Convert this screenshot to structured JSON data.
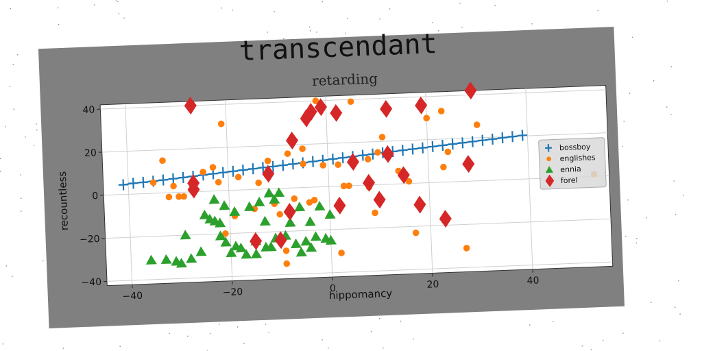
{
  "figure": {
    "background": "#808080",
    "plot_background": "#ffffff"
  },
  "chart_data": {
    "type": "scatter",
    "title": "transcendant",
    "subtitle": "retarding",
    "xlabel": "hippomancy",
    "ylabel": "recountless",
    "xlim": [
      -45,
      56
    ],
    "ylim": [
      -42,
      42
    ],
    "xticks": [
      -40,
      -20,
      0,
      20,
      40
    ],
    "yticks": [
      -40,
      -20,
      0,
      20,
      40
    ],
    "xtick_labels": [
      "−40",
      "−20",
      "0",
      "20",
      "40"
    ],
    "ytick_labels": [
      "−40",
      "−20",
      "0",
      "20",
      "40"
    ],
    "grid": true,
    "legend_position": "right",
    "series": [
      {
        "name": "bossboy",
        "marker": "plus",
        "color": "#1f77b4",
        "points": [
          [
            -41,
            4.5
          ],
          [
            -39,
            5
          ],
          [
            -37,
            5.3
          ],
          [
            -35,
            5.6
          ],
          [
            -33,
            6
          ],
          [
            -31,
            6.4
          ],
          [
            -29,
            6.8
          ],
          [
            -27,
            7.2
          ],
          [
            -25,
            7.6
          ],
          [
            -23,
            8
          ],
          [
            -21,
            8.4
          ],
          [
            -19,
            8.8
          ],
          [
            -17,
            9.2
          ],
          [
            -15,
            9.6
          ],
          [
            -13,
            10
          ],
          [
            -11,
            10.3
          ],
          [
            -9,
            10.7
          ],
          [
            -7,
            11.1
          ],
          [
            -5,
            11.5
          ],
          [
            -3,
            11.9
          ],
          [
            -1,
            12.3
          ],
          [
            1,
            12.7
          ],
          [
            3,
            13.1
          ],
          [
            5,
            13.5
          ],
          [
            7,
            13.9
          ],
          [
            9,
            14.3
          ],
          [
            11,
            14.7
          ],
          [
            13,
            15.1
          ],
          [
            15,
            15.5
          ],
          [
            17,
            15.9
          ],
          [
            19,
            16.3
          ],
          [
            21,
            16.7
          ],
          [
            23,
            17.1
          ],
          [
            25,
            17.5
          ],
          [
            27,
            17.9
          ],
          [
            29,
            18.3
          ],
          [
            31,
            18.7
          ],
          [
            33,
            19.1
          ],
          [
            35,
            19.5
          ],
          [
            37,
            19.9
          ],
          [
            39,
            20.3
          ]
        ]
      },
      {
        "name": "englishes",
        "marker": "circle",
        "color": "#ff7f0e",
        "points": [
          [
            -35,
            5
          ],
          [
            -33,
            15
          ],
          [
            -32,
            -2
          ],
          [
            -31,
            3
          ],
          [
            -30,
            -2
          ],
          [
            -29,
            -2
          ],
          [
            -25,
            9
          ],
          [
            -23,
            11
          ],
          [
            -22,
            4
          ],
          [
            -21,
            31
          ],
          [
            -21,
            -20
          ],
          [
            -19,
            -12
          ],
          [
            -18,
            6
          ],
          [
            -15,
            -9
          ],
          [
            -14,
            3
          ],
          [
            -12,
            13
          ],
          [
            -11,
            -7
          ],
          [
            -10,
            -12
          ],
          [
            -9,
            -35
          ],
          [
            -9,
            -29
          ],
          [
            -8,
            16
          ],
          [
            -7,
            -5
          ],
          [
            -5,
            11
          ],
          [
            -5,
            18
          ],
          [
            -4,
            -7
          ],
          [
            -3,
            -6
          ],
          [
            -2,
            40
          ],
          [
            -1,
            10
          ],
          [
            2,
            10
          ],
          [
            2,
            -31
          ],
          [
            3,
            0
          ],
          [
            4,
            0
          ],
          [
            5,
            39
          ],
          [
            8,
            -1
          ],
          [
            8,
            12
          ],
          [
            9,
            -13
          ],
          [
            10,
            15
          ],
          [
            11,
            22
          ],
          [
            12,
            13
          ],
          [
            14,
            6
          ],
          [
            16,
            1
          ],
          [
            17,
            -23
          ],
          [
            20,
            30
          ],
          [
            23,
            33
          ],
          [
            23,
            7
          ],
          [
            24,
            14
          ],
          [
            27,
            -31
          ],
          [
            30,
            26
          ],
          [
            53,
            1
          ]
        ]
      },
      {
        "name": "ennia",
        "marker": "triangle",
        "color": "#2ca02c",
        "points": [
          [
            -36,
            -31
          ],
          [
            -33,
            -31
          ],
          [
            -31,
            -32
          ],
          [
            -30,
            -33
          ],
          [
            -29,
            -20
          ],
          [
            -28,
            -31
          ],
          [
            -26,
            -28
          ],
          [
            -25,
            -11
          ],
          [
            -24,
            -13
          ],
          [
            -23,
            -4
          ],
          [
            -23,
            -14
          ],
          [
            -22,
            -21
          ],
          [
            -22,
            -15
          ],
          [
            -21,
            -7
          ],
          [
            -21,
            -24
          ],
          [
            -20,
            -29
          ],
          [
            -19,
            -10
          ],
          [
            -19,
            -26
          ],
          [
            -18,
            -27
          ],
          [
            -17,
            -30
          ],
          [
            -16,
            -8
          ],
          [
            -15,
            -30
          ],
          [
            -15,
            -24
          ],
          [
            -14,
            -6
          ],
          [
            -13,
            -15
          ],
          [
            -13,
            -27
          ],
          [
            -12,
            -2
          ],
          [
            -12,
            -27
          ],
          [
            -11,
            -5
          ],
          [
            -11,
            -23
          ],
          [
            -10,
            -2
          ],
          [
            -9,
            -22
          ],
          [
            -8,
            -16
          ],
          [
            -7,
            -26
          ],
          [
            -6,
            -9
          ],
          [
            -6,
            -30
          ],
          [
            -5,
            -25
          ],
          [
            -4,
            -28
          ],
          [
            -4,
            -16
          ],
          [
            -3,
            -23
          ],
          [
            -2,
            -9
          ],
          [
            -1,
            -24
          ],
          [
            0,
            -13
          ],
          [
            0,
            -25
          ]
        ]
      },
      {
        "name": "forel",
        "marker": "diamond",
        "color": "#d62728",
        "points": [
          [
            -27,
            40
          ],
          [
            -27,
            4
          ],
          [
            -27,
            1
          ],
          [
            -15,
            -24
          ],
          [
            -12,
            7
          ],
          [
            -10,
            -24
          ],
          [
            -8,
            -11
          ],
          [
            -7,
            22
          ],
          [
            -4,
            32
          ],
          [
            -3,
            35
          ],
          [
            -1,
            37
          ],
          [
            2,
            34
          ],
          [
            2,
            -9
          ],
          [
            5,
            11
          ],
          [
            8,
            1
          ],
          [
            10,
            -7
          ],
          [
            12,
            35
          ],
          [
            12,
            14
          ],
          [
            15,
            4
          ],
          [
            18,
            -10
          ],
          [
            19,
            36
          ],
          [
            23,
            -17
          ],
          [
            28,
            8
          ],
          [
            29,
            42
          ]
        ]
      }
    ]
  }
}
